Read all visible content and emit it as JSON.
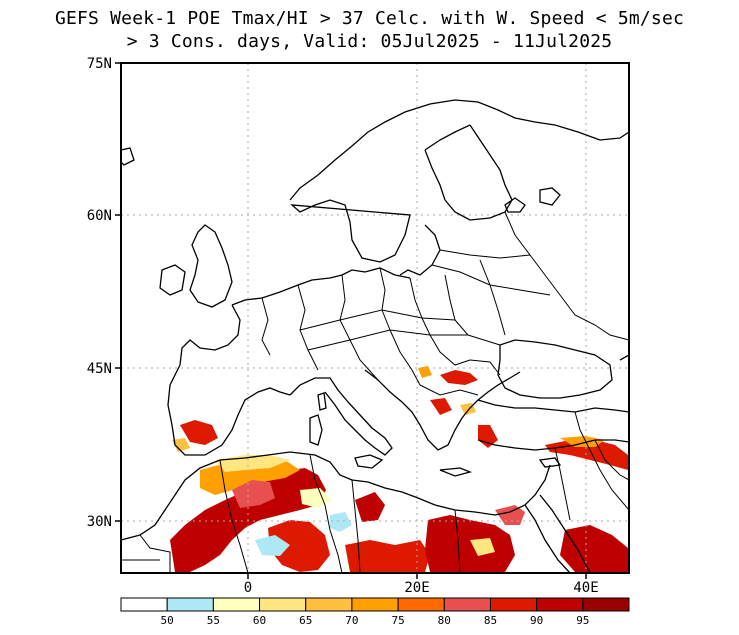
{
  "title_line1": "GEFS Week-1 POE Tmax/HI > 37 Celc. with W. Speed < 5m/sec",
  "title_line2": "> 3 Cons. days, Valid: 05Jul2025 - 11Jul2025",
  "lat_labels": [
    "75N",
    "60N",
    "45N",
    "30N"
  ],
  "lon_labels": [
    "0",
    "20E",
    "40E"
  ],
  "colorbar": {
    "ticks": [
      "50",
      "55",
      "60",
      "65",
      "70",
      "75",
      "80",
      "85",
      "90",
      "95"
    ],
    "colors": [
      "#ffffff",
      "#aee8f4",
      "#ffffbe",
      "#ffe680",
      "#ffbf3f",
      "#ff9f00",
      "#ff6a00",
      "#e85050",
      "#dd1a00",
      "#bf0000",
      "#990000"
    ]
  }
}
